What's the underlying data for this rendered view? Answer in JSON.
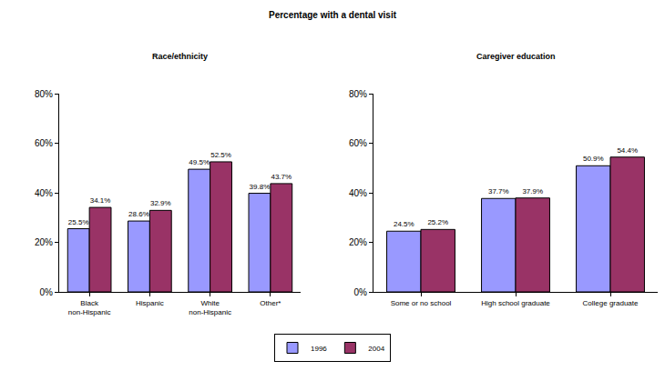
{
  "title": "Percentage with a dental visit",
  "legend": "bottom",
  "chart_data": [
    {
      "type": "bar",
      "title": "Race/ethnicity",
      "categories": [
        "Black non-Hispanic",
        "Hispanic",
        "White non-Hispanic",
        "Other*"
      ],
      "series": [
        {
          "name": "1996",
          "color": "#9999ff",
          "values": [
            25.5,
            28.6,
            49.5,
            39.8
          ],
          "value_labels": [
            "25.5%",
            "28.6%",
            "49.5%",
            "39.8%"
          ]
        },
        {
          "name": "2004",
          "color": "#993366",
          "values": [
            34.1,
            32.9,
            52.5,
            43.7
          ],
          "value_labels": [
            "34.1%",
            "32.9%",
            "52.5%",
            "43.7%"
          ]
        }
      ],
      "ylim": [
        0,
        80
      ],
      "yticks": [
        {
          "value": 0,
          "label": "0%"
        },
        {
          "value": 20,
          "label": "20%"
        },
        {
          "value": 40,
          "label": "40%"
        },
        {
          "value": 60,
          "label": "60%"
        },
        {
          "value": 80,
          "label": "80%"
        }
      ],
      "grid": false,
      "data_labels": true
    },
    {
      "type": "bar",
      "title": "Caregiver education",
      "categories": [
        "Some or no school",
        "High school graduate",
        "College graduate"
      ],
      "series": [
        {
          "name": "1996",
          "color": "#9999ff",
          "values": [
            24.5,
            37.7,
            50.9
          ],
          "value_labels": [
            "24.5%",
            "37.7%",
            "50.9%"
          ]
        },
        {
          "name": "2004",
          "color": "#993366",
          "values": [
            25.2,
            37.9,
            54.4
          ],
          "value_labels": [
            "25.2%",
            "37.9%",
            "54.4%"
          ]
        }
      ],
      "ylim": [
        0,
        80
      ],
      "yticks": [
        {
          "value": 0,
          "label": "0%"
        },
        {
          "value": 20,
          "label": "20%"
        },
        {
          "value": 40,
          "label": "40%"
        },
        {
          "value": 60,
          "label": "60%"
        },
        {
          "value": 80,
          "label": "80%"
        }
      ],
      "grid": false,
      "data_labels": true
    }
  ]
}
